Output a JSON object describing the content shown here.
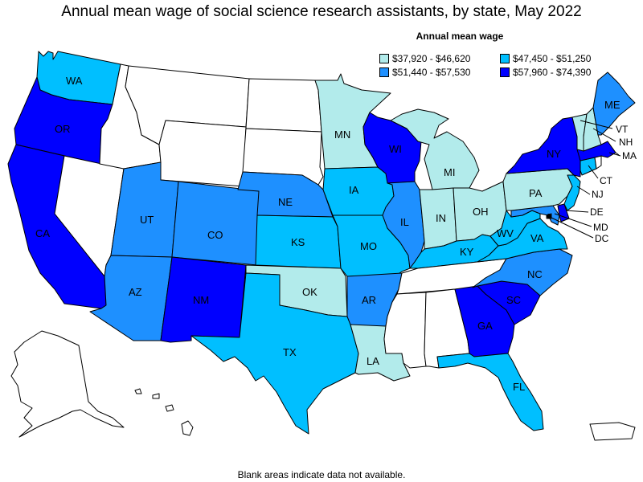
{
  "title": "Annual mean wage of social science research assistants, by state, May 2022",
  "legend": {
    "title": "Annual mean wage",
    "items": [
      {
        "label": "$37,920 - $46,620",
        "color": "#b2ebeb"
      },
      {
        "label": "$47,450 - $51,250",
        "color": "#00bfff"
      },
      {
        "label": "$51,440 - $57,530",
        "color": "#1e90ff"
      },
      {
        "label": "$57,960 - $74,390",
        "color": "#0000ff"
      }
    ]
  },
  "footnote": "Blank areas indicate data not available.",
  "states": {
    "WA": {
      "bin": 1
    },
    "OR": {
      "bin": 3
    },
    "CA": {
      "bin": 3
    },
    "NV": {
      "bin": null
    },
    "ID": {
      "bin": null
    },
    "MT": {
      "bin": null
    },
    "WY": {
      "bin": null
    },
    "UT": {
      "bin": 2
    },
    "AZ": {
      "bin": 2
    },
    "CO": {
      "bin": 2
    },
    "NM": {
      "bin": 3
    },
    "ND": {
      "bin": null
    },
    "SD": {
      "bin": null
    },
    "NE": {
      "bin": 2
    },
    "KS": {
      "bin": 1
    },
    "OK": {
      "bin": 0
    },
    "TX": {
      "bin": 1
    },
    "MN": {
      "bin": 0
    },
    "IA": {
      "bin": 1
    },
    "MO": {
      "bin": 1
    },
    "AR": {
      "bin": 2
    },
    "LA": {
      "bin": 0
    },
    "WI": {
      "bin": 3
    },
    "IL": {
      "bin": 2
    },
    "MI": {
      "bin": 0
    },
    "IN": {
      "bin": 0
    },
    "OH": {
      "bin": 0
    },
    "KY": {
      "bin": 1
    },
    "TN": {
      "bin": null
    },
    "MS": {
      "bin": null
    },
    "AL": {
      "bin": null
    },
    "GA": {
      "bin": 3
    },
    "FL": {
      "bin": 1
    },
    "SC": {
      "bin": 3
    },
    "NC": {
      "bin": 2
    },
    "VA": {
      "bin": 1
    },
    "WV": {
      "bin": 1
    },
    "PA": {
      "bin": 0
    },
    "NY": {
      "bin": 3
    },
    "VT": {
      "bin": 0
    },
    "NH": {
      "bin": 0
    },
    "ME": {
      "bin": 2
    },
    "MA": {
      "bin": 3
    },
    "CT": {
      "bin": 1
    },
    "NJ": {
      "bin": 1
    },
    "DE": {
      "bin": 3
    },
    "MD": {
      "bin": 2
    },
    "DC": {
      "bin": null
    },
    "RI": {
      "bin": null
    },
    "AK": {
      "bin": null
    },
    "HI": {
      "bin": null
    },
    "PR": {
      "bin": null
    }
  }
}
